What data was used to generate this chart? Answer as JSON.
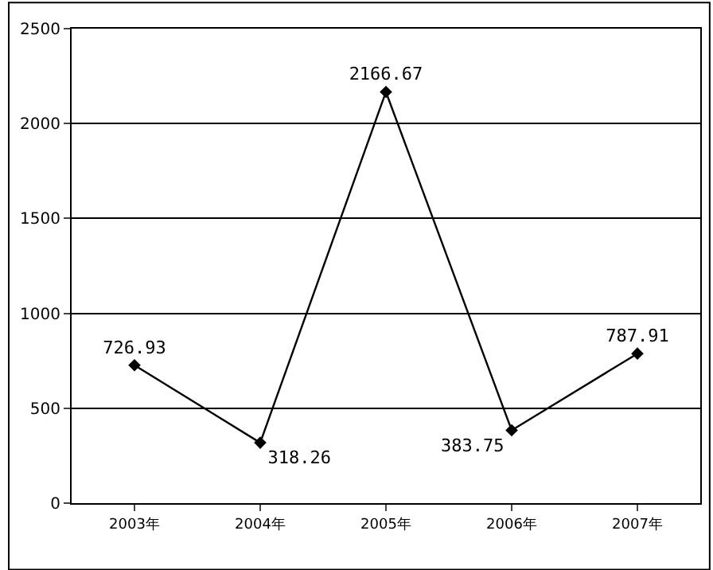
{
  "chart_data": {
    "type": "line",
    "categories": [
      "2003年",
      "2004年",
      "2005年",
      "2006年",
      "2007年"
    ],
    "series": [
      {
        "color": "#000000",
        "values": [
          726.93,
          318.26,
          2166.67,
          383.75,
          787.91
        ]
      }
    ],
    "ylim": [
      0,
      2500
    ],
    "yticks": [
      0,
      500,
      1000,
      1500,
      2000,
      2500
    ],
    "grid": "y",
    "marker": "diamond",
    "line_style": "solid",
    "data_labels": true
  }
}
